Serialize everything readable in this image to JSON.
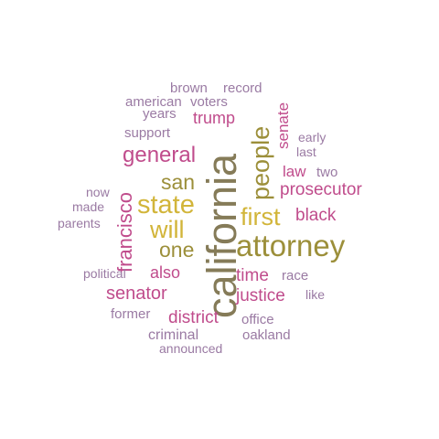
{
  "colors": {
    "purple": "#9a7aa3",
    "magenta": "#c04c8c",
    "gold": "#d2b53a",
    "olive": "#857b58",
    "olive_light": "#9c8f3a"
  },
  "words": {
    "california": "california",
    "attorney": "attorney",
    "people": "people",
    "francisco": "francisco",
    "senate": "senate",
    "state": "state",
    "first": "first",
    "will": "will",
    "one": "one",
    "san": "san",
    "general": "general",
    "prosecutor": "prosecutor",
    "black": "black",
    "law": "law",
    "two": "two",
    "early": "early",
    "last": "last",
    "trump": "trump",
    "brown": "brown",
    "record": "record",
    "american": "american",
    "voters": "voters",
    "years": "years",
    "support": "support",
    "now": "now",
    "made": "made",
    "parents": "parents",
    "political": "political",
    "also": "also",
    "time": "time",
    "race": "race",
    "senator": "senator",
    "justice": "justice",
    "like": "like",
    "former": "former",
    "district": "district",
    "office": "office",
    "criminal": "criminal",
    "oakland": "oakland",
    "announced": "announced"
  }
}
